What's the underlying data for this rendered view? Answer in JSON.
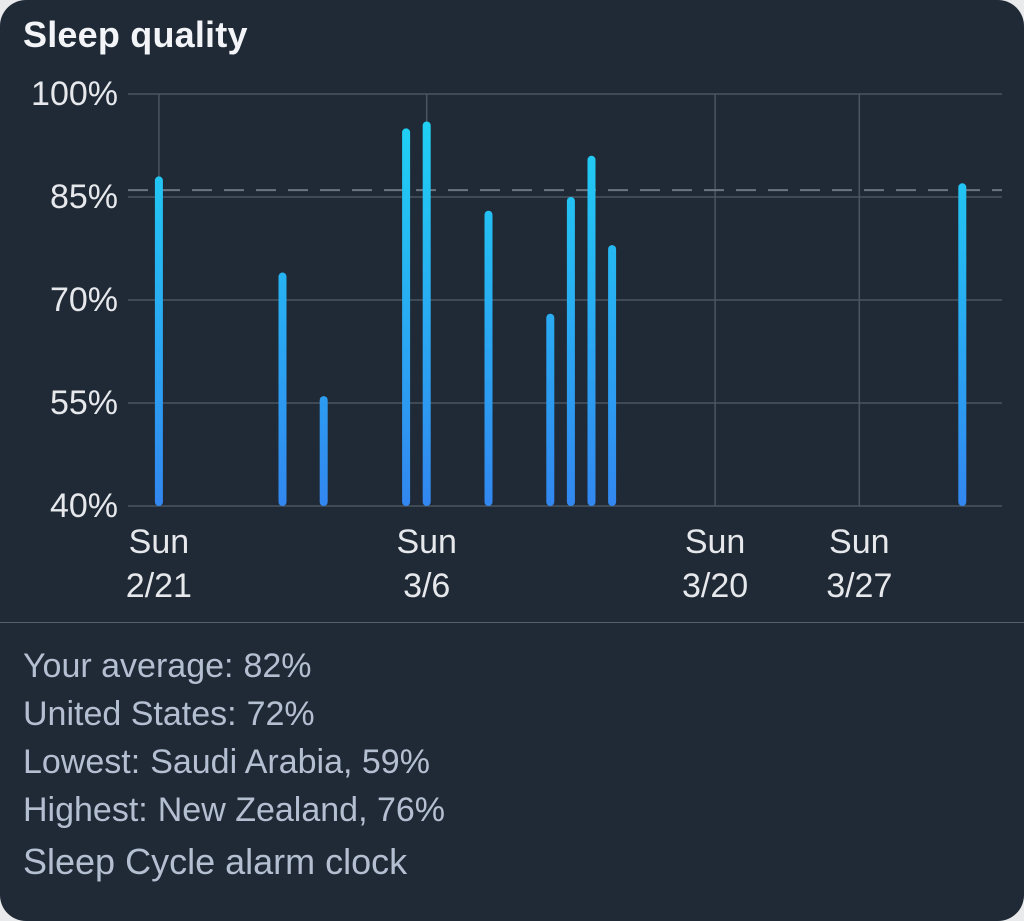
{
  "title": "Sleep quality",
  "chart_data": {
    "type": "bar",
    "title": "Sleep quality",
    "ylim": [
      40,
      100
    ],
    "yticks": [
      "100%",
      "85%",
      "70%",
      "55%",
      "40%"
    ],
    "ytick_values": [
      100,
      85,
      70,
      55,
      40
    ],
    "reference_line": 86,
    "xticks": [
      {
        "date": "2021-02-21",
        "line1": "Sun",
        "line2": "2/21"
      },
      {
        "date": "2021-03-06",
        "line1": "Sun",
        "line2": "3/6"
      },
      {
        "date": "2021-03-20",
        "line1": "Sun",
        "line2": "3/20"
      },
      {
        "date": "2021-03-27",
        "line1": "Sun",
        "line2": "3/27"
      }
    ],
    "x": [
      "2021-02-21",
      "2021-02-27",
      "2021-03-01",
      "2021-03-05",
      "2021-03-06",
      "2021-03-09",
      "2021-03-12",
      "2021-03-13",
      "2021-03-14",
      "2021-03-15",
      "2021-04-01"
    ],
    "values": [
      88,
      74,
      56,
      95,
      96,
      83,
      68,
      85,
      91,
      78,
      87
    ],
    "colors": {
      "bar_top": "#1ed6f4",
      "bar_bottom": "#3287f0",
      "grid": "#4a5562",
      "reference": "#6b7580",
      "tick_label": "#e6e8ec"
    }
  },
  "stats": {
    "average_label": "Your average:",
    "average_value": "82%",
    "us_label": "United States:",
    "us_value": "72%",
    "lowest_label": "Lowest:",
    "lowest_value": "Saudi Arabia, 59%",
    "highest_label": "Highest:",
    "highest_value": "New Zealand, 76%"
  },
  "brand": "Sleep Cycle alarm clock"
}
